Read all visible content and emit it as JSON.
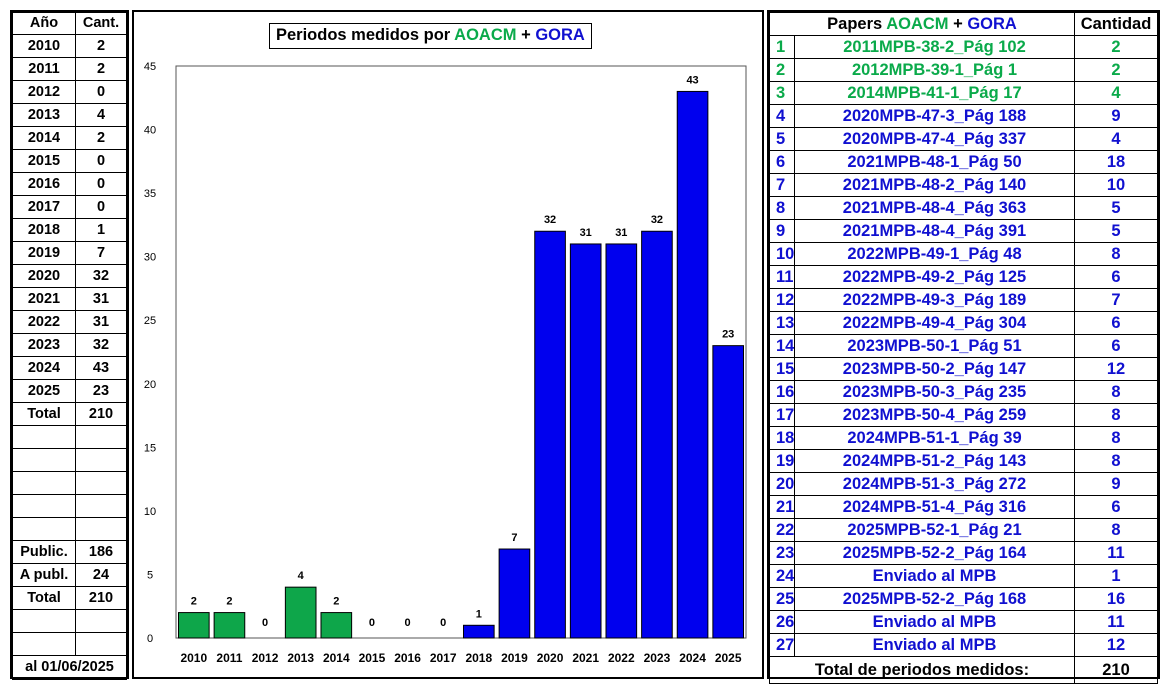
{
  "left_table": {
    "headers": [
      "Año",
      "Cant."
    ],
    "rows": [
      [
        "2010",
        "2"
      ],
      [
        "2011",
        "2"
      ],
      [
        "2012",
        "0"
      ],
      [
        "2013",
        "4"
      ],
      [
        "2014",
        "2"
      ],
      [
        "2015",
        "0"
      ],
      [
        "2016",
        "0"
      ],
      [
        "2017",
        "0"
      ],
      [
        "2018",
        "1"
      ],
      [
        "2019",
        "7"
      ],
      [
        "2020",
        "32"
      ],
      [
        "2021",
        "31"
      ],
      [
        "2022",
        "31"
      ],
      [
        "2023",
        "32"
      ],
      [
        "2024",
        "43"
      ],
      [
        "2025",
        "23"
      ]
    ],
    "total_label": "Total",
    "total_value": "210",
    "public_label": "Public.",
    "public_value": "186",
    "apubl_label": "A publ.",
    "apubl_value": "24",
    "total2_label": "Total",
    "total2_value": "210",
    "date_label": "al 01/06/2025"
  },
  "chart_title": {
    "prefix": "Periodos medidos por ",
    "aoacm": "AOACM",
    "plus": " + ",
    "gora": "GORA"
  },
  "colors": {
    "green": "#0aaa4a",
    "blue": "#1010d0",
    "bar_green": "#0ea64a",
    "bar_blue": "#0000ee"
  },
  "chart_data": {
    "type": "bar",
    "title": "Periodos medidos por AOACM + GORA",
    "xlabel": "",
    "ylabel": "",
    "categories": [
      "2010",
      "2011",
      "2012",
      "2013",
      "2014",
      "2015",
      "2016",
      "2017",
      "2018",
      "2019",
      "2020",
      "2021",
      "2022",
      "2023",
      "2024",
      "2025"
    ],
    "values": [
      2,
      2,
      0,
      4,
      2,
      0,
      0,
      0,
      1,
      7,
      32,
      31,
      31,
      32,
      43,
      23
    ],
    "bar_colors": [
      "green",
      "green",
      "green",
      "green",
      "green",
      "blue",
      "blue",
      "blue",
      "blue",
      "blue",
      "blue",
      "blue",
      "blue",
      "blue",
      "blue",
      "blue"
    ],
    "ylim": [
      0,
      45
    ],
    "yticks": [
      0,
      5,
      10,
      15,
      20,
      25,
      30,
      35,
      40,
      45
    ],
    "grid": false,
    "data_labels": true
  },
  "right_table": {
    "header": {
      "papers_prefix": "Papers ",
      "aoacm": "AOACM",
      "plus": " + ",
      "gora": "GORA",
      "qty": "Cantidad"
    },
    "rows": [
      {
        "n": "1",
        "paper": "2011MPB-38-2_Pág 102",
        "qty": "2",
        "color": "green"
      },
      {
        "n": "2",
        "paper": "2012MPB-39-1_Pág 1",
        "qty": "2",
        "color": "green"
      },
      {
        "n": "3",
        "paper": "2014MPB-41-1_Pág 17",
        "qty": "4",
        "color": "green"
      },
      {
        "n": "4",
        "paper": "2020MPB-47-3_Pág 188",
        "qty": "9",
        "color": "blue"
      },
      {
        "n": "5",
        "paper": "2020MPB-47-4_Pág 337",
        "qty": "4",
        "color": "blue"
      },
      {
        "n": "6",
        "paper": "2021MPB-48-1_Pág 50",
        "qty": "18",
        "color": "blue"
      },
      {
        "n": "7",
        "paper": "2021MPB-48-2_Pág 140",
        "qty": "10",
        "color": "blue"
      },
      {
        "n": "8",
        "paper": "2021MPB-48-4_Pág 363",
        "qty": "5",
        "color": "blue"
      },
      {
        "n": "9",
        "paper": "2021MPB-48-4_Pág 391",
        "qty": "5",
        "color": "blue"
      },
      {
        "n": "10",
        "paper": "2022MPB-49-1_Pág 48",
        "qty": "8",
        "color": "blue"
      },
      {
        "n": "11",
        "paper": "2022MPB-49-2_Pág 125",
        "qty": "6",
        "color": "blue"
      },
      {
        "n": "12",
        "paper": "2022MPB-49-3_Pág 189",
        "qty": "7",
        "color": "blue"
      },
      {
        "n": "13",
        "paper": "2022MPB-49-4_Pág 304",
        "qty": "6",
        "color": "blue"
      },
      {
        "n": "14",
        "paper": "2023MPB-50-1_Pág 51",
        "qty": "6",
        "color": "blue"
      },
      {
        "n": "15",
        "paper": "2023MPB-50-2_Pág 147",
        "qty": "12",
        "color": "blue"
      },
      {
        "n": "16",
        "paper": "2023MPB-50-3_Pág 235",
        "qty": "8",
        "color": "blue"
      },
      {
        "n": "17",
        "paper": "2023MPB-50-4_Pág 259",
        "qty": "8",
        "color": "blue"
      },
      {
        "n": "18",
        "paper": "2024MPB-51-1_Pág 39",
        "qty": "8",
        "color": "blue"
      },
      {
        "n": "19",
        "paper": "2024MPB-51-2_Pág 143",
        "qty": "8",
        "color": "blue"
      },
      {
        "n": "20",
        "paper": "2024MPB-51-3_Pág 272",
        "qty": "9",
        "color": "blue"
      },
      {
        "n": "21",
        "paper": "2024MPB-51-4_Pág 316",
        "qty": "6",
        "color": "blue"
      },
      {
        "n": "22",
        "paper": "2025MPB-52-1_Pág 21",
        "qty": "8",
        "color": "blue"
      },
      {
        "n": "23",
        "paper": "2025MPB-52-2_Pág 164",
        "qty": "11",
        "color": "blue"
      },
      {
        "n": "24",
        "paper": "Enviado al MPB",
        "qty": "1",
        "color": "blue"
      },
      {
        "n": "25",
        "paper": "2025MPB-52-2_Pág 168",
        "qty": "16",
        "color": "blue"
      },
      {
        "n": "26",
        "paper": "Enviado al MPB",
        "qty": "11",
        "color": "blue"
      },
      {
        "n": "27",
        "paper": "Enviado al MPB",
        "qty": "12",
        "color": "blue"
      }
    ],
    "footer_label": "Total de periodos medidos:",
    "footer_value": "210"
  }
}
